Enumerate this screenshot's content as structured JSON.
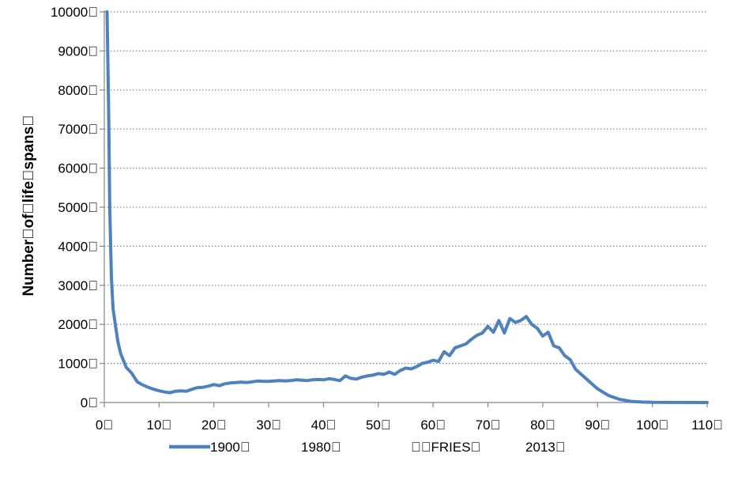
{
  "chart_data": {
    "type": "line",
    "title": "",
    "xlabel": "",
    "ylabel": "Number\u0000of\u0000life\u0000spans\u0000",
    "xlim": [
      0,
      110
    ],
    "ylim": [
      0,
      10000
    ],
    "grid": "horizontal dotted",
    "legend_position": "bottom",
    "x_ticks": [
      0,
      10,
      20,
      30,
      40,
      50,
      60,
      70,
      80,
      90,
      100,
      110
    ],
    "x_tick_labels": [
      "0\u0000",
      "10\u0000",
      "20\u0000",
      "30\u0000",
      "40\u0000",
      "50\u0000",
      "60\u0000",
      "70\u0000",
      "80\u0000",
      "90\u0000",
      "100\u0000",
      "110\u0000"
    ],
    "y_ticks": [
      0,
      1000,
      2000,
      3000,
      4000,
      5000,
      6000,
      7000,
      8000,
      9000,
      10000
    ],
    "y_tick_labels": [
      "0\u0000",
      "1000\u0000",
      "2000\u0000",
      "3000\u0000",
      "4000\u0000",
      "5000\u0000",
      "6000\u0000",
      "7000\u0000",
      "8000\u0000",
      "9000\u0000",
      "10000\u0000"
    ],
    "legend": [
      {
        "label": "1900\u0000",
        "color": "#4f81bd",
        "has_line": true
      },
      {
        "label": "1980\u0000",
        "color": "#4f81bd",
        "has_line": false
      },
      {
        "label": "\u0000\u0000FRIES\u0000",
        "color": "#4f81bd",
        "has_line": false
      },
      {
        "label": "2013\u0000",
        "color": "#4f81bd",
        "has_line": false
      }
    ],
    "series": [
      {
        "name": "1900\u0000",
        "color": "#4f81bd",
        "x": [
          0.5,
          0.8,
          1,
          1.3,
          1.6,
          2,
          2.5,
          3,
          4,
          5,
          6,
          7,
          8,
          9,
          10,
          11,
          12,
          13,
          14,
          15,
          16,
          17,
          18,
          19,
          20,
          21,
          22,
          23,
          24,
          25,
          26,
          27,
          28,
          29,
          30,
          31,
          32,
          33,
          34,
          35,
          36,
          37,
          38,
          39,
          40,
          41,
          42,
          43,
          44,
          45,
          46,
          47,
          48,
          49,
          50,
          51,
          52,
          53,
          54,
          55,
          56,
          57,
          58,
          59,
          60,
          61,
          62,
          63,
          64,
          65,
          66,
          67,
          68,
          69,
          70,
          71,
          72,
          73,
          74,
          75,
          76,
          77,
          78,
          79,
          80,
          81,
          82,
          83,
          84,
          85,
          86,
          88,
          90,
          92,
          94,
          96,
          98,
          100,
          105,
          110
        ],
        "y": [
          10000,
          7500,
          5000,
          3200,
          2400,
          2000,
          1550,
          1250,
          900,
          750,
          530,
          450,
          390,
          340,
          300,
          270,
          250,
          290,
          300,
          290,
          340,
          380,
          390,
          420,
          460,
          430,
          480,
          500,
          510,
          520,
          510,
          530,
          550,
          540,
          540,
          550,
          560,
          550,
          560,
          580,
          570,
          560,
          580,
          590,
          580,
          610,
          590,
          560,
          680,
          620,
          600,
          650,
          680,
          700,
          740,
          720,
          780,
          720,
          820,
          880,
          860,
          920,
          1000,
          1030,
          1080,
          1050,
          1300,
          1200,
          1400,
          1450,
          1500,
          1620,
          1720,
          1780,
          1950,
          1800,
          2100,
          1780,
          2150,
          2050,
          2100,
          2200,
          2000,
          1900,
          1700,
          1800,
          1450,
          1400,
          1200,
          1100,
          850,
          600,
          350,
          180,
          80,
          30,
          12,
          5,
          2,
          0
        ]
      }
    ]
  }
}
